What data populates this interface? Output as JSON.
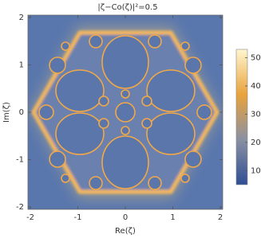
{
  "chart_data": {
    "type": "density",
    "title": "|ζ−Co(ζ)|²=0.5",
    "x_label": "Re(ζ)",
    "y_label": "Im(ζ)",
    "xlim": [
      -2.05,
      2.05
    ],
    "ylim": [
      -2.05,
      2.05
    ],
    "xticks": [
      -2,
      -1,
      0,
      1,
      2
    ],
    "yticks": [
      -2,
      -1,
      0,
      1,
      2
    ],
    "colorbar": {
      "lim": [
        5,
        53
      ],
      "ticks": [
        10,
        20,
        30,
        40,
        50
      ],
      "colors": [
        "#2f4f94",
        "#8a90a2",
        "#e9a33c",
        "#fff6d0"
      ]
    }
  }
}
